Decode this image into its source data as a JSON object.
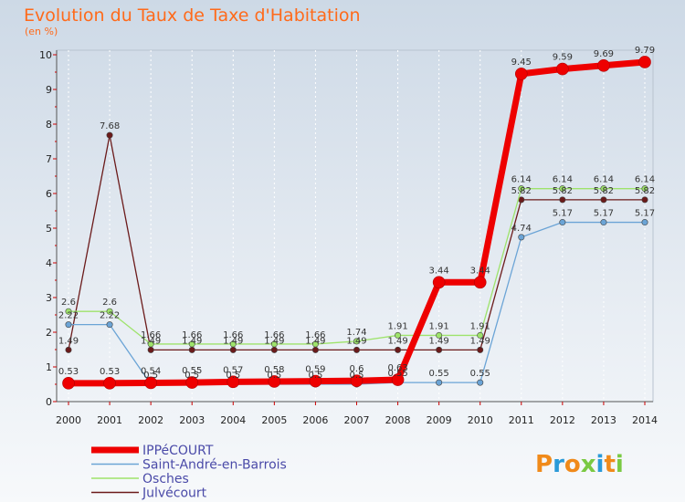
{
  "chart_data": {
    "type": "line",
    "title": "Evolution du Taux de Taxe d'Habitation",
    "ylabel": "(en %)",
    "ylim": [
      0,
      10
    ],
    "yticks": [
      "0",
      "1",
      "2",
      "3",
      "4",
      "5",
      "6",
      "7",
      "8",
      "9",
      "10"
    ],
    "x": [
      "2000",
      "2001",
      "2002",
      "2003",
      "2004",
      "2005",
      "2006",
      "2007",
      "2008",
      "2009",
      "2010",
      "2011",
      "2012",
      "2013",
      "2014"
    ],
    "series": [
      {
        "name": "Julvécourt",
        "color": "#6b1a1a",
        "width": 1.3,
        "values": [
          1.49,
          7.68,
          1.49,
          1.49,
          1.49,
          1.49,
          1.49,
          1.49,
          1.49,
          1.49,
          1.49,
          5.82,
          5.82,
          5.82,
          5.82
        ],
        "labels": [
          "1.49",
          "7.68",
          "1.49",
          "1.49",
          "1.49",
          "1.49",
          "1.49",
          "1.49",
          "1.49",
          "1.49",
          "1.49",
          "5.82",
          "5.82",
          "5.82",
          "5.82"
        ]
      },
      {
        "name": "Osches",
        "color": "#9ee36b",
        "width": 1.3,
        "values": [
          2.6,
          2.6,
          1.66,
          1.66,
          1.66,
          1.66,
          1.66,
          1.74,
          1.91,
          1.91,
          1.91,
          6.14,
          6.14,
          6.14,
          6.14
        ],
        "labels": [
          "2.6",
          "2.6",
          "1.66",
          "1.66",
          "1.66",
          "1.66",
          "1.66",
          "1.74",
          "1.91",
          "1.91",
          "1.91",
          "6.14",
          "6.14",
          "6.14",
          "6.14"
        ]
      },
      {
        "name": "Saint-André-en-Barrois",
        "color": "#6ba4d6",
        "width": 1.3,
        "values": [
          2.22,
          2.22,
          0.5,
          0.5,
          0.5,
          0.5,
          0.5,
          0.5,
          0.55,
          0.55,
          0.55,
          4.74,
          5.17,
          5.17,
          5.17
        ],
        "labels": [
          "2.22",
          "2.22",
          "0.5",
          "0.5",
          "0.5",
          "0.5",
          "0.5",
          "0.5",
          "0.55",
          "0.55",
          "0.55",
          "4.74",
          "5.17",
          "5.17",
          "5.17"
        ]
      },
      {
        "name": "IPPéCOURT",
        "color": "#ee0000",
        "width": 7,
        "values": [
          0.53,
          0.53,
          0.54,
          0.55,
          0.57,
          0.58,
          0.59,
          0.6,
          0.63,
          3.44,
          3.44,
          9.45,
          9.59,
          9.69,
          9.79
        ],
        "labels": [
          "0.53",
          "0.53",
          "0.54",
          "0.55",
          "0.57",
          "0.58",
          "0.59",
          "0.6",
          "0.63",
          "3.44",
          "3.44",
          "9.45",
          "9.59",
          "9.69",
          "9.79"
        ]
      }
    ],
    "legend": [
      "IPPéCOURT",
      "Saint-André-en-Barrois",
      "Osches",
      "Julvécourt"
    ]
  },
  "logo": {
    "letters": [
      "P",
      "r",
      "o",
      "x",
      "i",
      "t",
      "i"
    ],
    "colors": [
      "#f08a1a",
      "#2a9ad8",
      "#f08a1a",
      "#7ac943",
      "#2a9ad8",
      "#f08a1a",
      "#7ac943"
    ]
  }
}
